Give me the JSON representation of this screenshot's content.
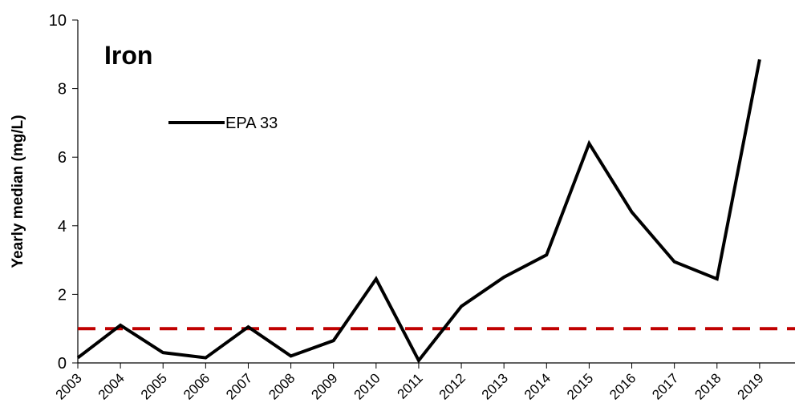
{
  "chart_data": {
    "type": "line",
    "title": "Iron",
    "y_label": "Yearly median (mg/L)",
    "categories": [
      "2003",
      "2004",
      "2005",
      "2006",
      "2007",
      "2008",
      "2009",
      "2010",
      "2011",
      "2012",
      "2013",
      "2014",
      "2015",
      "2016",
      "2017",
      "2018",
      "2019"
    ],
    "series": [
      {
        "name": "EPA 33",
        "color": "#000000",
        "values": [
          0.15,
          1.1,
          0.3,
          0.15,
          1.05,
          0.2,
          0.65,
          2.45,
          0.07,
          1.65,
          2.5,
          3.15,
          6.4,
          4.4,
          2.95,
          2.45,
          8.85
        ]
      }
    ],
    "reference_line": {
      "value": 1,
      "color": "#c00000"
    },
    "ylim": [
      0,
      10
    ],
    "yticks": [
      0,
      2,
      4,
      6,
      8,
      10
    ],
    "grid": false,
    "legend": "upper left"
  }
}
